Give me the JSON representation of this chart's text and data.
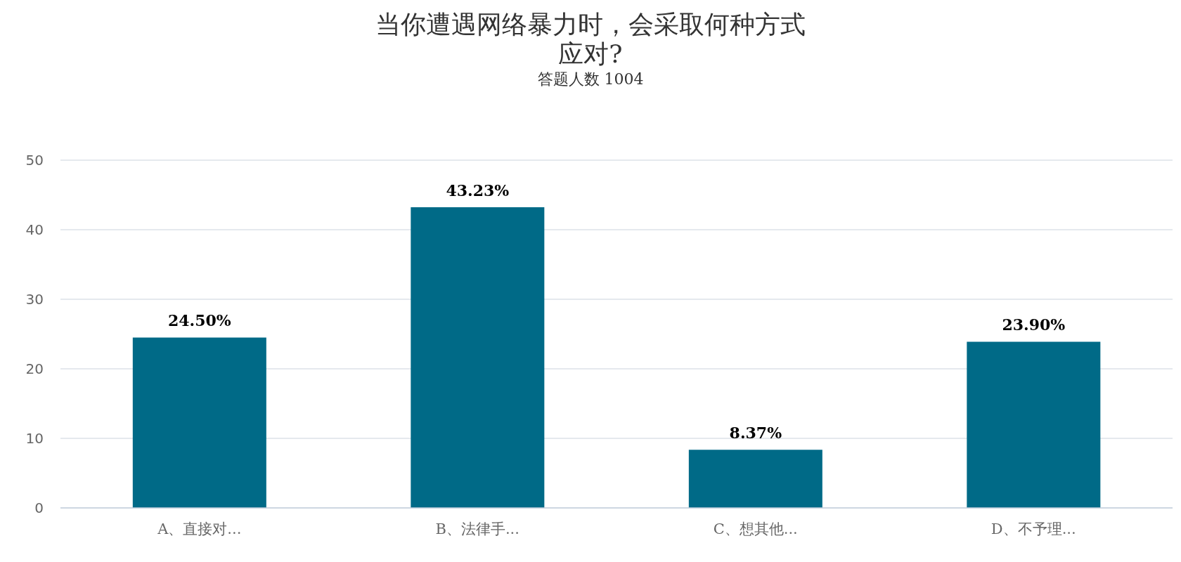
{
  "chart_data": {
    "type": "bar",
    "title": "当你遭遇网络暴力时，会采取何种方式应对?",
    "subtitle": "答题人数 1004",
    "categories": [
      "A、直接对...",
      "B、法律手...",
      "C、想其他...",
      "D、不予理..."
    ],
    "values": [
      24.5,
      43.23,
      8.37,
      23.9
    ],
    "value_labels": [
      "24.50%",
      "43.23%",
      "8.37%",
      "23.90%"
    ],
    "color": "#006a87",
    "ylim": [
      0,
      50
    ],
    "yticks": [
      0,
      10,
      20,
      30,
      40,
      50
    ],
    "grid": "y"
  }
}
